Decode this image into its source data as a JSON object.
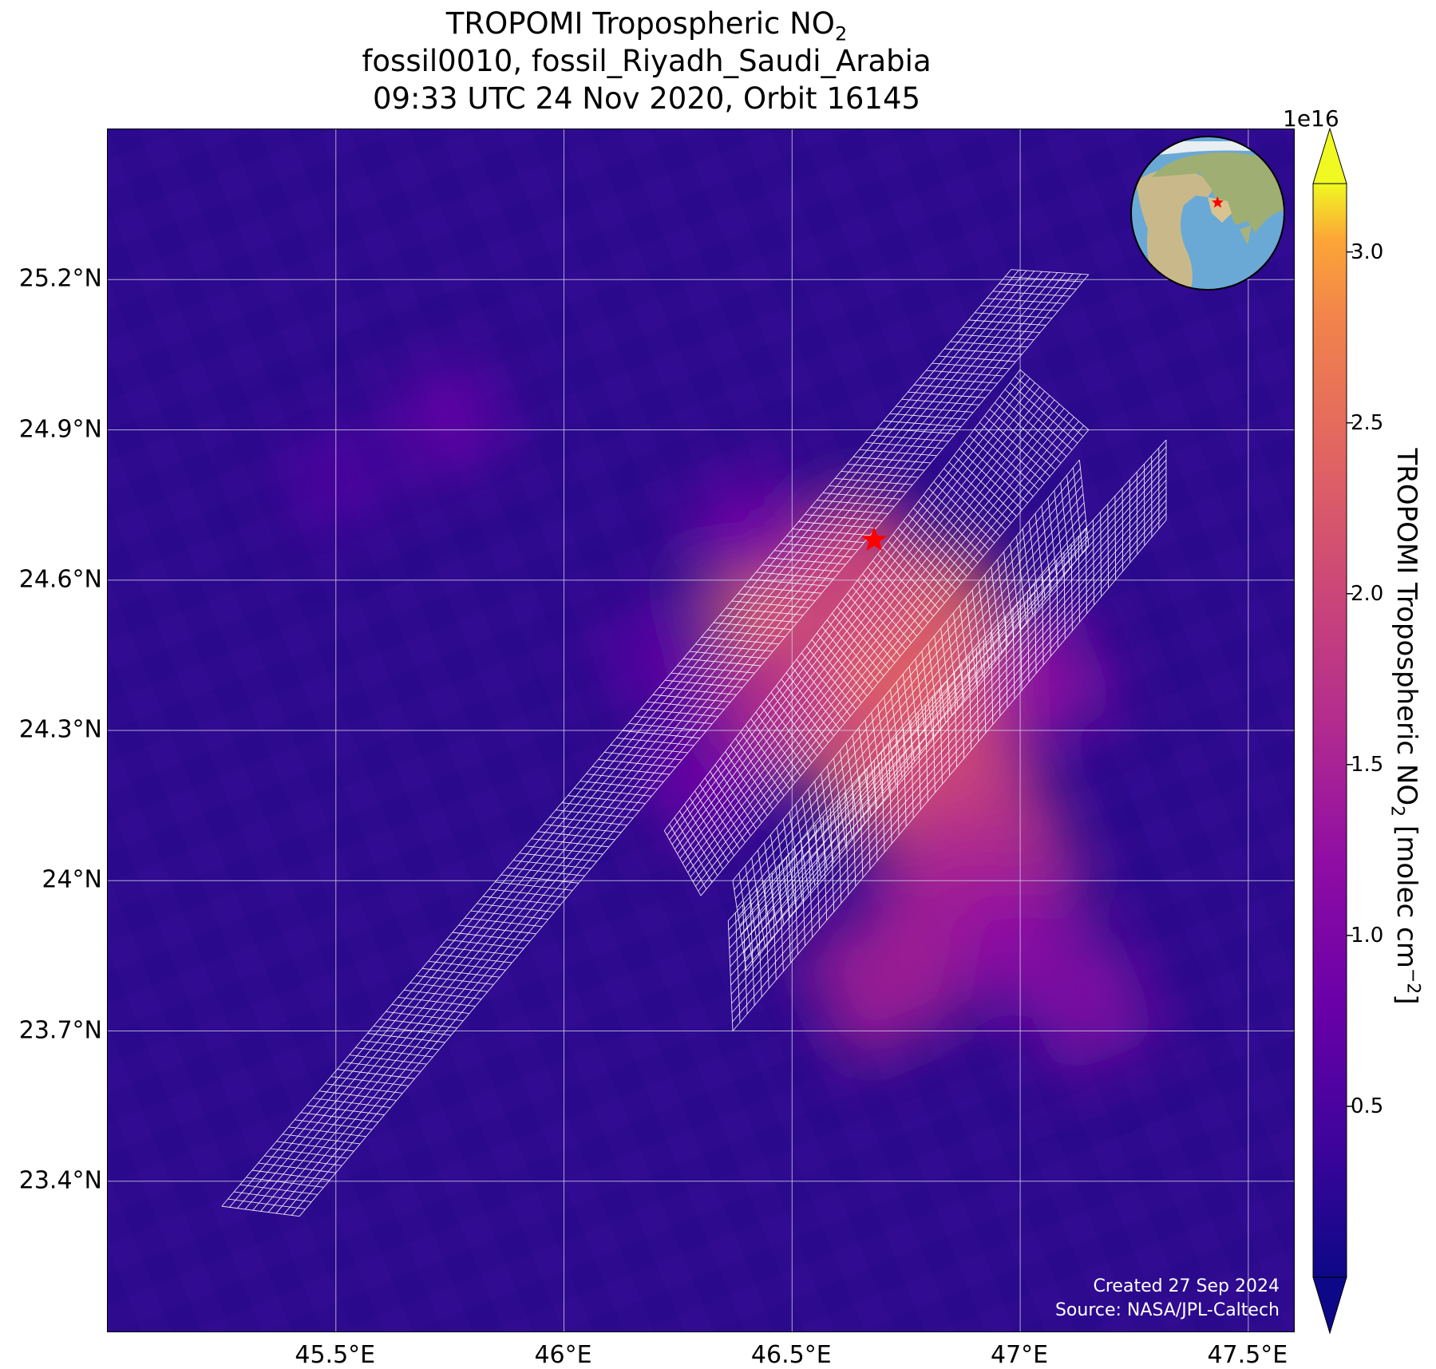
{
  "title": {
    "line1": "TROPOMI Tropospheric NO",
    "line1_sub": "2",
    "line2": "fossil0010, fossil_Riyadh_Saudi_Arabia",
    "line3": "09:33 UTC 24 Nov 2020, Orbit 16145"
  },
  "map": {
    "lon_range": [
      45.0,
      47.6
    ],
    "lat_range": [
      23.1,
      25.5
    ],
    "lon_ticks": [
      {
        "value": 45.5,
        "label": "45.5°E"
      },
      {
        "value": 46.0,
        "label": "46°E"
      },
      {
        "value": 46.5,
        "label": "46.5°E"
      },
      {
        "value": 47.0,
        "label": "47°E"
      },
      {
        "value": 47.5,
        "label": "47.5°E"
      }
    ],
    "lat_ticks": [
      {
        "value": 25.2,
        "label": "25.2°N"
      },
      {
        "value": 24.9,
        "label": "24.9°N"
      },
      {
        "value": 24.6,
        "label": "24.6°N"
      },
      {
        "value": 24.3,
        "label": "24.3°N"
      },
      {
        "value": 24.0,
        "label": "24°N"
      },
      {
        "value": 23.7,
        "label": "23.7°N"
      },
      {
        "value": 23.4,
        "label": "23.4°N"
      }
    ],
    "background_color": "#2d0a8e",
    "gridlines": true,
    "target_marker": {
      "lon": 46.68,
      "lat": 24.68,
      "color": "#ff0000",
      "icon": "star-icon"
    },
    "no2_hotspots": [
      {
        "lon": 46.66,
        "lat": 24.43,
        "value": 3.0
      },
      {
        "lon": 46.55,
        "lat": 24.52,
        "value": 2.6
      },
      {
        "lon": 46.8,
        "lat": 24.45,
        "value": 2.5
      },
      {
        "lon": 46.75,
        "lat": 24.28,
        "value": 2.3
      },
      {
        "lon": 46.85,
        "lat": 24.2,
        "value": 2.0
      },
      {
        "lon": 46.95,
        "lat": 24.05,
        "value": 1.7
      },
      {
        "lon": 46.45,
        "lat": 24.35,
        "value": 1.6
      },
      {
        "lon": 46.62,
        "lat": 24.6,
        "value": 1.9
      },
      {
        "lon": 46.85,
        "lat": 23.95,
        "value": 1.5
      },
      {
        "lon": 46.7,
        "lat": 23.8,
        "value": 1.5
      },
      {
        "lon": 47.0,
        "lat": 23.88,
        "value": 1.2
      },
      {
        "lon": 47.15,
        "lat": 23.75,
        "value": 1.1
      },
      {
        "lon": 46.3,
        "lat": 24.2,
        "value": 0.9
      },
      {
        "lon": 47.05,
        "lat": 24.4,
        "value": 1.2
      },
      {
        "lon": 46.4,
        "lat": 24.7,
        "value": 0.9
      },
      {
        "lon": 45.75,
        "lat": 24.92,
        "value": 0.8
      },
      {
        "lon": 45.5,
        "lat": 24.8,
        "value": 0.6
      },
      {
        "lon": 46.2,
        "lat": 24.45,
        "value": 0.7
      }
    ],
    "swaths": [
      {
        "name": "swath-1",
        "corners": [
          [
            45.25,
            23.35
          ],
          [
            45.42,
            23.33
          ],
          [
            47.15,
            25.21
          ],
          [
            46.98,
            25.22
          ]
        ],
        "rows": 130,
        "cols": 10
      },
      {
        "name": "swath-2",
        "corners": [
          [
            46.22,
            24.1
          ],
          [
            46.3,
            23.97
          ],
          [
            47.15,
            24.9
          ],
          [
            47.0,
            25.02
          ]
        ],
        "rows": 70,
        "cols": 14
      },
      {
        "name": "swath-3",
        "corners": [
          [
            46.37,
            24.0
          ],
          [
            46.4,
            23.82
          ],
          [
            47.15,
            24.67
          ],
          [
            47.13,
            24.84
          ]
        ],
        "rows": 55,
        "cols": 10
      },
      {
        "name": "swath-4",
        "corners": [
          [
            46.37,
            23.7
          ],
          [
            46.36,
            23.92
          ],
          [
            47.32,
            24.88
          ],
          [
            47.32,
            24.72
          ]
        ],
        "rows": 60,
        "cols": 12
      }
    ]
  },
  "credits": {
    "created": "Created 27 Sep 2024",
    "source": "Source: NASA/JPL-Caltech"
  },
  "colorbar": {
    "exponent": "1e16",
    "label": "TROPOMI Tropospheric NO",
    "label_sub": "2",
    "label_unit": " [molec cm",
    "label_sup": "−2",
    "label_end": "]",
    "vmin": 0.0,
    "vmax": 3.2,
    "colormap": "plasma",
    "extend": "both",
    "ticks": [
      {
        "value": 0.5,
        "label": "0.5"
      },
      {
        "value": 1.0,
        "label": "1.0"
      },
      {
        "value": 1.5,
        "label": "1.5"
      },
      {
        "value": 2.0,
        "label": "2.0"
      },
      {
        "value": 2.5,
        "label": "2.5"
      },
      {
        "value": 3.0,
        "label": "3.0"
      }
    ]
  },
  "inset_globe": {
    "icon": "globe-icon",
    "marker_color": "#ff0000"
  }
}
